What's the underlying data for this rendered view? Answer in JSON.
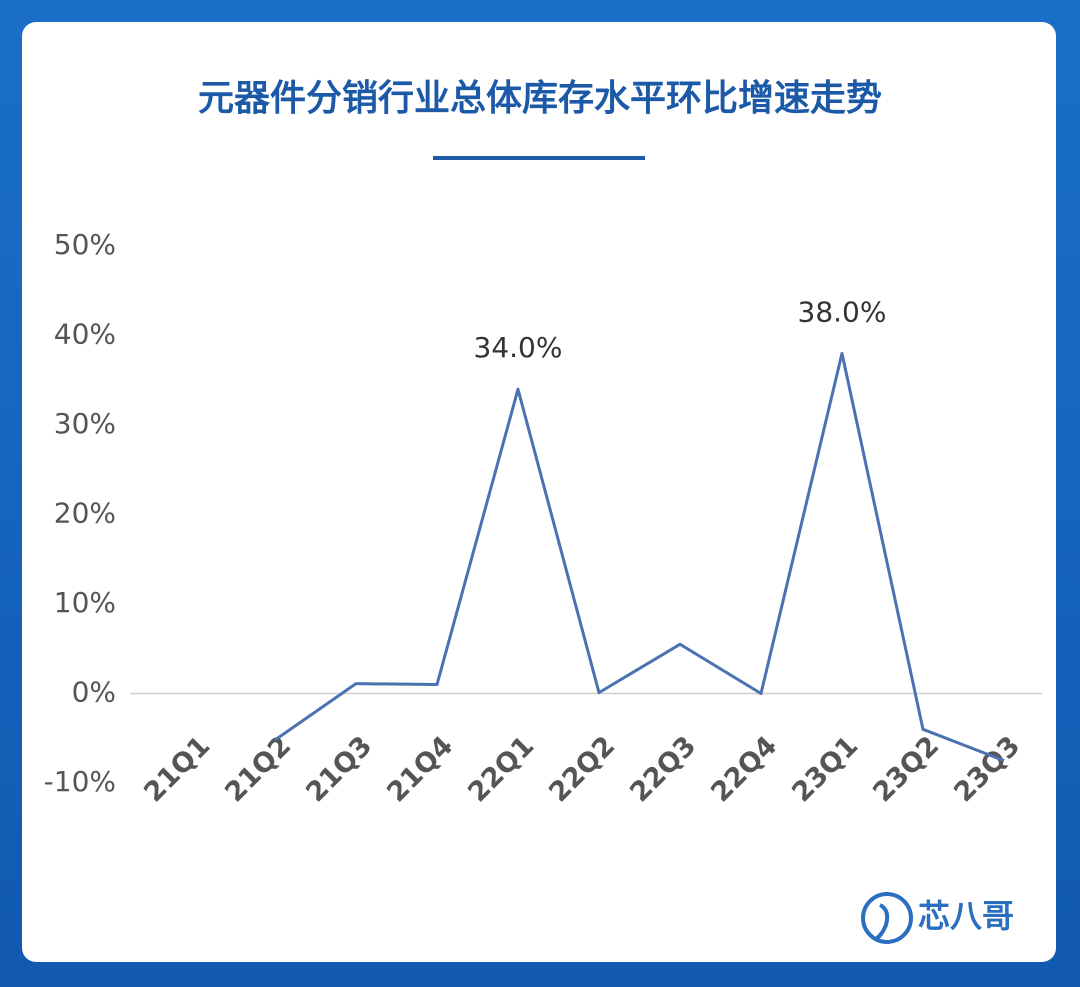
{
  "chart_data": {
    "type": "line",
    "title": "元器件分销行业总体库存水平环比增速走势",
    "categories": [
      "21Q1",
      "21Q2",
      "21Q3",
      "21Q4",
      "22Q1",
      "22Q2",
      "22Q3",
      "22Q4",
      "23Q1",
      "23Q2",
      "23Q3"
    ],
    "series": [
      {
        "name": "库存水平环比增速",
        "color": "#4a72b0",
        "values": [
          null,
          -5.2,
          1.1,
          1.0,
          34.0,
          0.1,
          5.5,
          0.0,
          38.0,
          -4.0,
          -7.5
        ],
        "value_labels": [
          null,
          null,
          null,
          null,
          "34.0%",
          null,
          null,
          null,
          "38.0%",
          null,
          null
        ]
      }
    ],
    "ylim": [
      -10,
      50
    ],
    "yticks": [
      {
        "value": -10,
        "label": "-10%"
      },
      {
        "value": 0,
        "label": "0%"
      },
      {
        "value": 10,
        "label": "10%"
      },
      {
        "value": 20,
        "label": "20%"
      },
      {
        "value": 30,
        "label": "30%"
      },
      {
        "value": 40,
        "label": "40%"
      },
      {
        "value": 50,
        "label": "50%"
      }
    ],
    "zero_line": true,
    "legend": false,
    "brand": "芯八哥"
  }
}
